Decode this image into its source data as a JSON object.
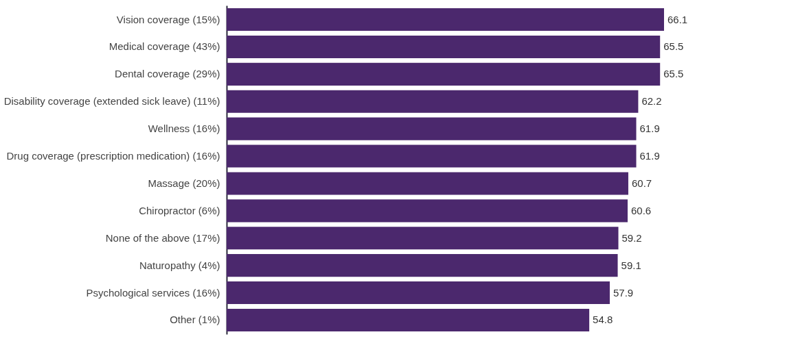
{
  "chart_data": {
    "type": "bar",
    "orientation": "horizontal",
    "data_labels": true,
    "grid": false,
    "categories": [
      "Vision coverage (15%)",
      "Medical coverage (43%)",
      "Dental coverage (29%)",
      "Disability coverage (extended sick leave) (11%)",
      "Wellness (16%)",
      "Drug coverage (prescription medication) (16%)",
      "Massage (20%)",
      "Chiropractor (6%)",
      "None of the above (17%)",
      "Naturopathy (4%)",
      "Psychological services (16%)",
      "Other (1%)"
    ],
    "values": [
      66.1,
      65.5,
      65.5,
      62.2,
      61.9,
      61.9,
      60.7,
      60.6,
      59.2,
      59.1,
      57.9,
      54.8
    ],
    "color": "#4b286d"
  }
}
